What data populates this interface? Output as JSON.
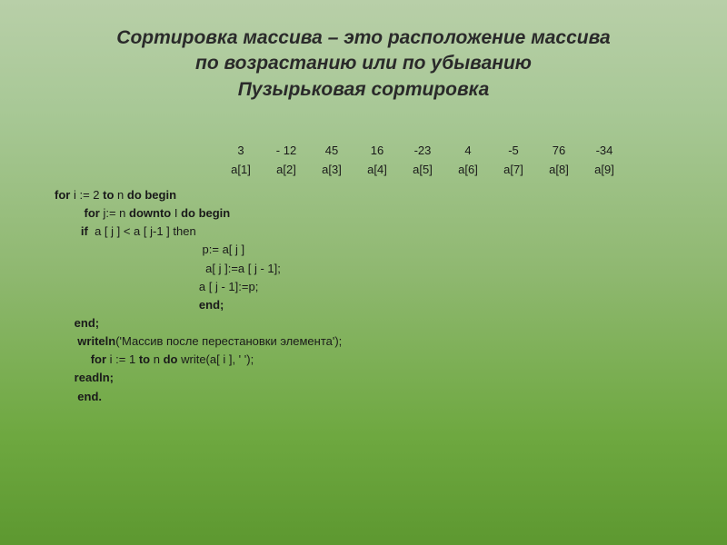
{
  "title": {
    "line1_em": "Сортировка массива",
    "line1_rest": " – это расположение массива",
    "line2": "по возрастанию или по убыванию",
    "line3": "Пузырьковая сортировка"
  },
  "array": {
    "values": [
      "3",
      "- 12",
      "45",
      "16",
      "-23",
      "4",
      "-5",
      "76",
      "-34"
    ],
    "labels": [
      "a[1]",
      "a[2]",
      "a[3]",
      "a[4]",
      "a[5]",
      "a[6]",
      "a[7]",
      "a[8]",
      "a[9]"
    ]
  },
  "code": {
    "l1_a": "for",
    "l1_b": " i := 2 ",
    "l1_c": "to",
    "l1_d": " n ",
    "l1_e": "do begin",
    "l2_a": "         for",
    "l2_b": " j:= n ",
    "l2_c": "downto",
    "l2_d": " I ",
    "l2_e": "do begin",
    "l3_a": "        if",
    "l3_b": "  a [ j ] < a [ j-1 ] then",
    "l4": "                                             p:= a[ j ]",
    "l5": "                                              a[ j ]:=a [ j - 1];",
    "l6": "                                            a [ j - 1]:=p;",
    "l7": "                                            end;",
    "l8": "      end;",
    "l9_a": "       writeln",
    "l9_b": "('Массив после перестановки элемента');",
    "l10_a": "           for",
    "l10_b": " i := 1 ",
    "l10_c": "to",
    "l10_d": " n ",
    "l10_e": "do",
    "l10_f": " write(a[ i ], ' ');",
    "l11": "      readln;",
    "l12": "       end."
  },
  "colors": {
    "bg_top": "#b8cfa8",
    "bg_bottom": "#5d9830",
    "text": "#2a2a2a"
  }
}
